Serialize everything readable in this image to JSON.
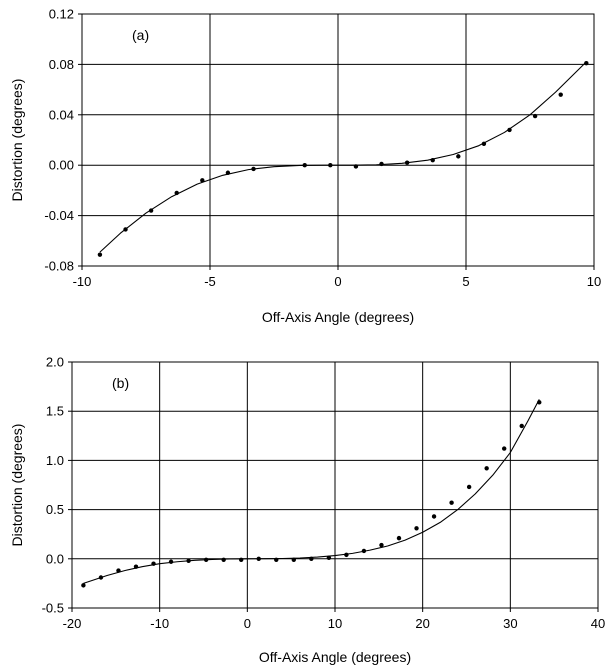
{
  "chart_data": [
    {
      "type": "scatter",
      "panel_label": "(a)",
      "xlabel": "Off-Axis Angle (degrees)",
      "ylabel": "Distortion (degrees)",
      "xlim": [
        -10,
        10
      ],
      "ylim": [
        -0.08,
        0.12
      ],
      "xticks": [
        -10,
        -5,
        0,
        5,
        10
      ],
      "xtick_labels": [
        "-10",
        "-5",
        "0",
        "5",
        "10"
      ],
      "yticks": [
        -0.08,
        -0.04,
        0.0,
        0.04,
        0.08,
        0.12
      ],
      "ytick_labels": [
        "-0.08",
        "-0.04",
        "0.00",
        "0.04",
        "0.08",
        "0.12"
      ],
      "grid": true,
      "series": [
        {
          "x": [
            -9.3,
            -8.3,
            -7.3,
            -6.3,
            -5.3,
            -4.3,
            -3.3,
            -1.3,
            -0.3,
            0.7,
            1.7,
            2.7,
            3.7,
            4.7,
            5.7,
            6.7,
            7.7,
            8.7,
            9.7
          ],
          "y": [
            -0.071,
            -0.051,
            -0.036,
            -0.022,
            -0.012,
            -0.006,
            -0.003,
            0.0,
            0.0,
            -0.001,
            0.001,
            0.002,
            0.004,
            0.007,
            0.017,
            0.028,
            0.039,
            0.056,
            0.081
          ]
        }
      ],
      "fit_line": {
        "x": [
          -9.3,
          -8.5,
          -7.5,
          -6.5,
          -5.5,
          -4.5,
          -3.5,
          -2.5,
          -1.5,
          -0.5,
          0.5,
          1.5,
          2.5,
          3.5,
          4.5,
          5.5,
          6.5,
          7.5,
          8.5,
          9.7
        ],
        "y": [
          -0.069,
          -0.054,
          -0.038,
          -0.025,
          -0.015,
          -0.008,
          -0.0035,
          -0.0012,
          -0.0002,
          0.0,
          0.0,
          0.0003,
          0.0015,
          0.004,
          0.0085,
          0.0155,
          0.026,
          0.04,
          0.058,
          0.082
        ]
      }
    },
    {
      "type": "scatter",
      "panel_label": "(b)",
      "xlabel": "Off-Axis Angle (degrees)",
      "ylabel": "Distortion (degrees)",
      "xlim": [
        -20,
        40
      ],
      "ylim": [
        -0.5,
        2.0
      ],
      "xticks": [
        -20,
        -10,
        0,
        10,
        20,
        30,
        40
      ],
      "xtick_labels": [
        "-20",
        "-10",
        "0",
        "10",
        "20",
        "30",
        "40"
      ],
      "yticks": [
        -0.5,
        0.0,
        0.5,
        1.0,
        1.5,
        2.0
      ],
      "ytick_labels": [
        "-0.5",
        "0.0",
        "0.5",
        "1.0",
        "1.5",
        "2.0"
      ],
      "grid": true,
      "series": [
        {
          "x": [
            -18.7,
            -16.7,
            -14.7,
            -12.7,
            -10.7,
            -8.7,
            -6.7,
            -4.7,
            -2.7,
            -0.7,
            1.3,
            3.3,
            5.3,
            7.3,
            9.3,
            11.3,
            13.3,
            15.3,
            17.3,
            19.3,
            21.3,
            23.3,
            25.3,
            27.3,
            29.3,
            31.3,
            33.3
          ],
          "y": [
            -0.27,
            -0.19,
            -0.12,
            -0.08,
            -0.05,
            -0.03,
            -0.02,
            -0.01,
            -0.01,
            -0.01,
            0.0,
            -0.01,
            -0.01,
            0.0,
            0.01,
            0.04,
            0.08,
            0.14,
            0.21,
            0.31,
            0.43,
            0.57,
            0.73,
            0.92,
            1.12,
            1.35,
            1.59
          ]
        }
      ],
      "fit_line": {
        "x": [
          -18.7,
          -16,
          -14,
          -12,
          -10,
          -8,
          -6,
          -4,
          -2,
          0,
          2,
          4,
          6,
          8,
          10,
          12,
          14,
          16,
          18,
          20,
          22,
          24,
          26,
          28,
          30,
          32,
          33.3
        ],
        "y": [
          -0.25,
          -0.17,
          -0.12,
          -0.08,
          -0.05,
          -0.03,
          -0.015,
          -0.006,
          -0.002,
          0.0,
          0.001,
          0.003,
          0.008,
          0.018,
          0.033,
          0.055,
          0.088,
          0.13,
          0.19,
          0.27,
          0.37,
          0.5,
          0.66,
          0.85,
          1.08,
          1.4,
          1.62
        ]
      }
    }
  ]
}
